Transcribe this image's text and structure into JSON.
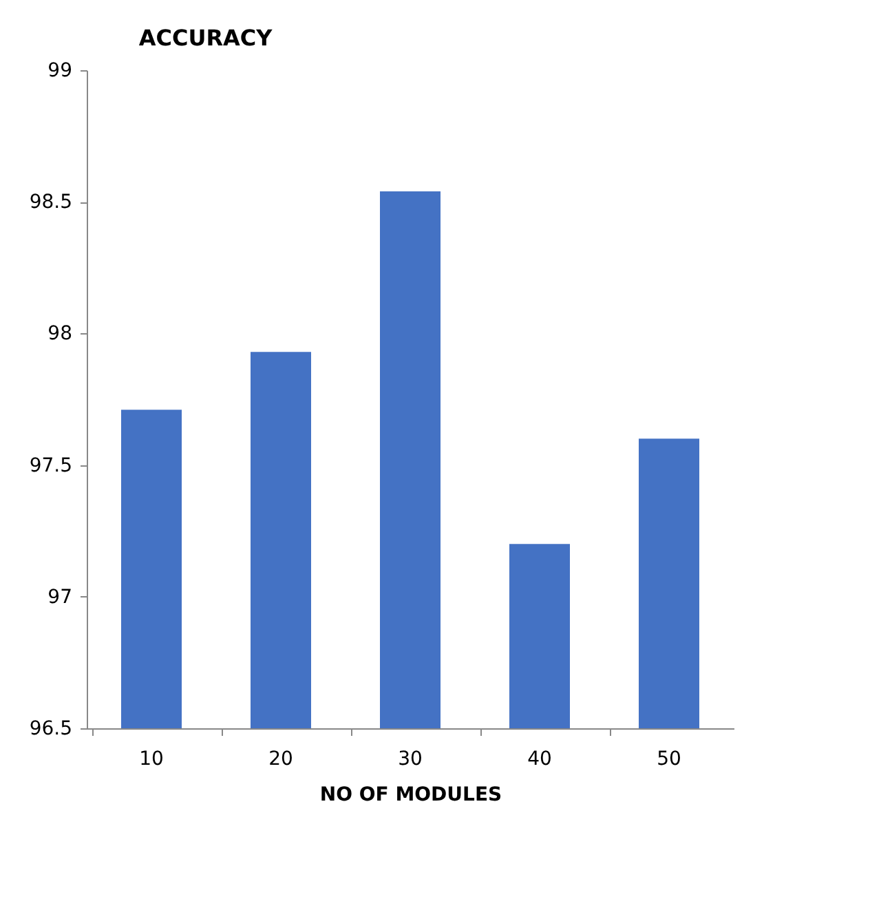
{
  "chart_data": {
    "type": "bar",
    "title": "ACCURACY",
    "xlabel": "NO OF MODULES",
    "categories": [
      "10",
      "20",
      "30",
      "40",
      "50"
    ],
    "values": [
      97.71,
      97.93,
      98.54,
      97.2,
      97.6
    ],
    "color": "#4472c4",
    "ylim": [
      96.5,
      99
    ],
    "yticks": [
      96.5,
      97,
      97.5,
      98,
      98.5,
      99
    ],
    "grid": false
  }
}
